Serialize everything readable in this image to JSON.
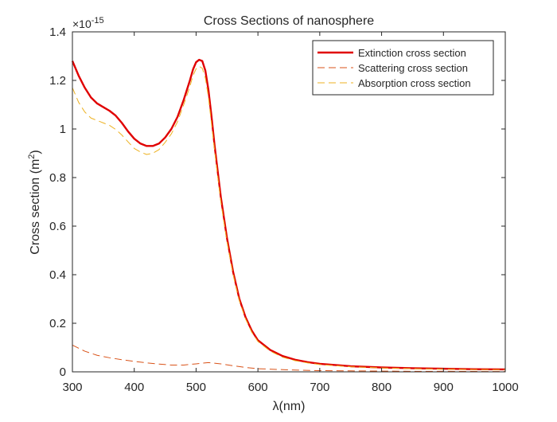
{
  "chart_data": {
    "type": "line",
    "title": "Cross Sections of nanosphere",
    "xlabel": "λ(nm)",
    "ylabel_main": "Cross section (m",
    "ylabel_sup": "2",
    "ylabel_close": ")",
    "exponent_base": "×10",
    "exponent_power": "-15",
    "xlim": [
      300,
      1000
    ],
    "ylim": [
      0,
      1.4
    ],
    "xticks": [
      300,
      400,
      500,
      600,
      700,
      800,
      900,
      1000
    ],
    "yticks": [
      0,
      0.2,
      0.4,
      0.6,
      0.8,
      1,
      1.2,
      1.4
    ],
    "ytick_labels": [
      "0",
      "0.2",
      "0.4",
      "0.6",
      "0.8",
      "1",
      "1.2",
      "1.4"
    ],
    "legend_position": "top-right",
    "series": [
      {
        "name": "Extinction cross section",
        "color": "#e00000",
        "style": "solid",
        "x": [
          300,
          310,
          320,
          330,
          340,
          350,
          360,
          370,
          380,
          390,
          400,
          410,
          420,
          430,
          440,
          450,
          460,
          470,
          480,
          490,
          495,
          500,
          505,
          510,
          515,
          520,
          525,
          530,
          540,
          550,
          560,
          570,
          580,
          590,
          600,
          620,
          640,
          660,
          680,
          700,
          750,
          800,
          850,
          900,
          950,
          1000
        ],
        "values": [
          1.28,
          1.22,
          1.17,
          1.13,
          1.105,
          1.09,
          1.075,
          1.055,
          1.025,
          0.99,
          0.96,
          0.94,
          0.93,
          0.93,
          0.94,
          0.965,
          1.0,
          1.05,
          1.12,
          1.2,
          1.245,
          1.275,
          1.285,
          1.28,
          1.24,
          1.16,
          1.05,
          0.93,
          0.72,
          0.55,
          0.41,
          0.3,
          0.225,
          0.17,
          0.13,
          0.09,
          0.065,
          0.05,
          0.04,
          0.033,
          0.023,
          0.018,
          0.015,
          0.013,
          0.011,
          0.01
        ]
      },
      {
        "name": "Scattering cross section",
        "color": "#d95319",
        "style": "dashed",
        "x": [
          300,
          320,
          340,
          360,
          380,
          400,
          420,
          440,
          460,
          480,
          500,
          520,
          540,
          560,
          580,
          600,
          650,
          700,
          750,
          800,
          850,
          900,
          950,
          1000
        ],
        "values": [
          0.11,
          0.085,
          0.068,
          0.058,
          0.05,
          0.043,
          0.037,
          0.032,
          0.028,
          0.028,
          0.033,
          0.038,
          0.033,
          0.025,
          0.018,
          0.013,
          0.008,
          0.005,
          0.004,
          0.003,
          0.002,
          0.002,
          0.0015,
          0.001
        ]
      },
      {
        "name": "Absorption cross section",
        "color": "#edb120",
        "style": "dashed",
        "x": [
          300,
          310,
          320,
          330,
          340,
          350,
          360,
          370,
          380,
          390,
          400,
          410,
          420,
          430,
          440,
          450,
          460,
          470,
          480,
          490,
          495,
          500,
          505,
          510,
          515,
          520,
          525,
          530,
          540,
          550,
          560,
          570,
          580,
          590,
          600,
          620,
          640,
          660,
          680,
          700,
          750,
          800,
          850,
          900,
          950,
          1000
        ],
        "values": [
          1.17,
          1.11,
          1.07,
          1.045,
          1.035,
          1.025,
          1.015,
          0.998,
          0.975,
          0.947,
          0.92,
          0.905,
          0.895,
          0.9,
          0.915,
          0.945,
          0.98,
          1.03,
          1.1,
          1.175,
          1.22,
          1.248,
          1.258,
          1.25,
          1.21,
          1.13,
          1.02,
          0.91,
          0.7,
          0.535,
          0.4,
          0.292,
          0.218,
          0.163,
          0.125,
          0.085,
          0.06,
          0.046,
          0.037,
          0.03,
          0.021,
          0.016,
          0.013,
          0.011,
          0.0095,
          0.009
        ]
      }
    ]
  }
}
